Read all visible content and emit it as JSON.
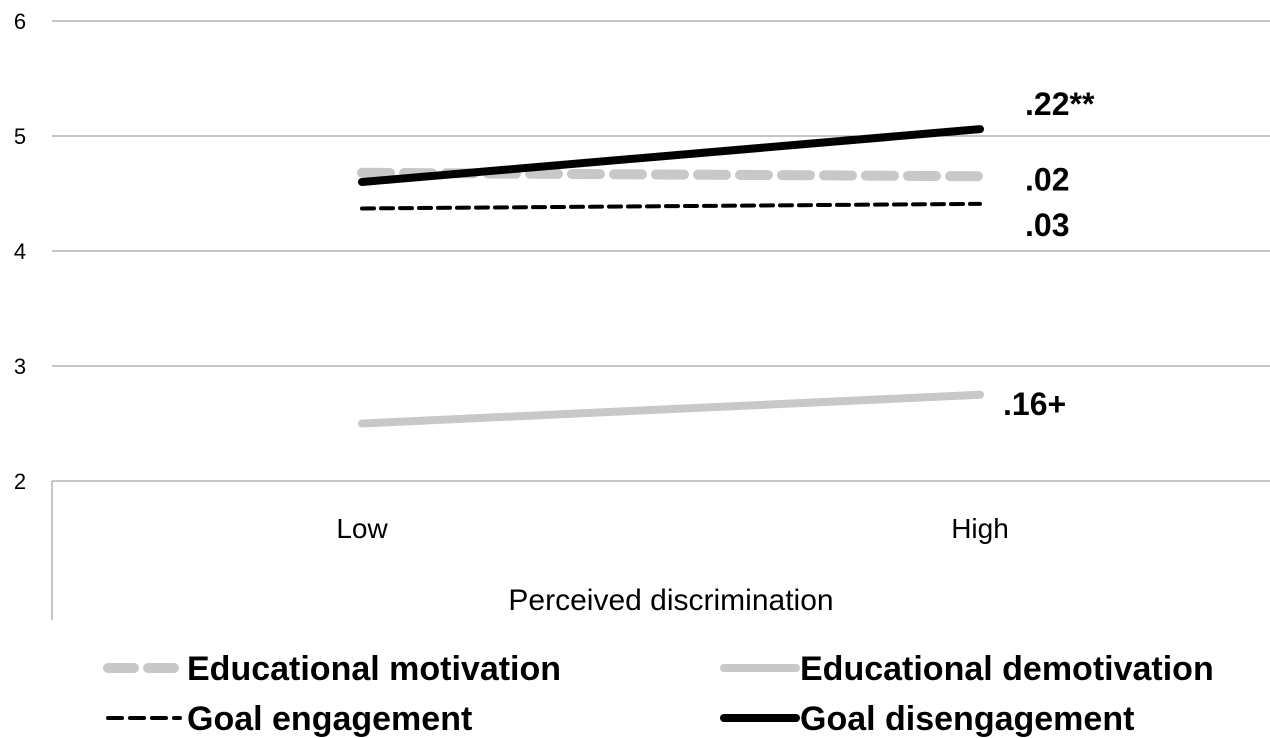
{
  "chart_data": {
    "type": "line",
    "xlabel": "Perceived discrimination",
    "ylabel": "",
    "categories": [
      "Low",
      "High"
    ],
    "ylim": [
      2,
      6
    ],
    "yticks": [
      2,
      3,
      4,
      5,
      6
    ],
    "grid": true,
    "legend_position": "bottom",
    "series": [
      {
        "name": "Educational motivation",
        "values": [
          4.68,
          4.65
        ],
        "end_label": ".02",
        "color": "#c8c8c8",
        "style": "dashed-thick"
      },
      {
        "name": "Educational demotivation",
        "values": [
          2.5,
          2.75
        ],
        "end_label": ".16+",
        "color": "#c8c8c8",
        "style": "solid-thick"
      },
      {
        "name": "Goal engagement",
        "values": [
          4.37,
          4.41
        ],
        "end_label": ".03",
        "color": "#000000",
        "style": "dashed-thin"
      },
      {
        "name": "Goal disengagement",
        "values": [
          4.6,
          5.06
        ],
        "end_label": ".22**",
        "color": "#000000",
        "style": "solid-thick"
      }
    ]
  }
}
